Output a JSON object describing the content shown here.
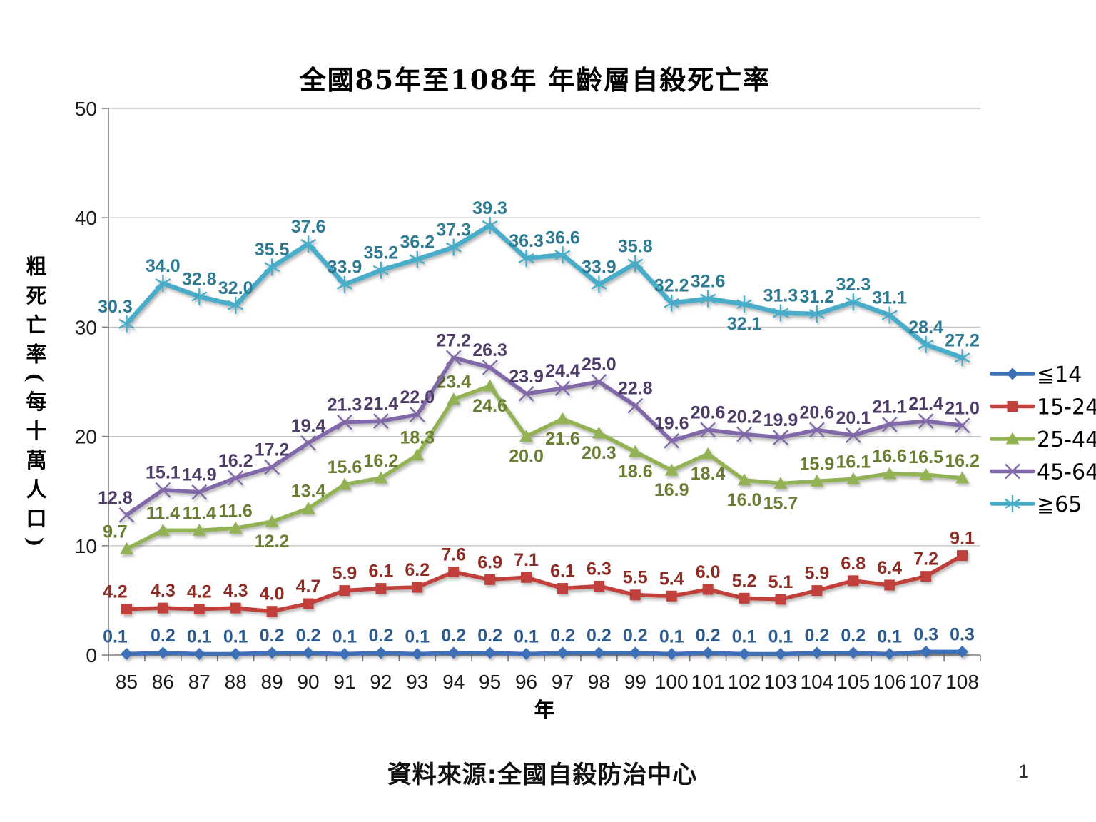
{
  "page": {
    "source_note": "資料來源:全國自殺防治中心",
    "page_number": "1"
  },
  "chart_data": {
    "type": "line",
    "title": "全國85年至108年 年齡層自殺死亡率",
    "xlabel": "年",
    "ylabel": "粗死亡率(每十萬人口)",
    "ylim": [
      0,
      50
    ],
    "ytick_step": 10,
    "grid": true,
    "legend_position": "right",
    "categories": [
      "85",
      "86",
      "87",
      "88",
      "89",
      "90",
      "91",
      "92",
      "93",
      "94",
      "95",
      "96",
      "97",
      "98",
      "99",
      "100",
      "101",
      "102",
      "103",
      "104",
      "105",
      "106",
      "107",
      "108"
    ],
    "series": [
      {
        "name": "≦14",
        "key": "le-14",
        "marker": "diamond",
        "color": "#3D6FB6",
        "label_color": "#2E5B8F",
        "values": [
          0.1,
          0.2,
          0.1,
          0.1,
          0.2,
          0.2,
          0.1,
          0.2,
          0.1,
          0.2,
          0.2,
          0.1,
          0.2,
          0.2,
          0.2,
          0.1,
          0.2,
          0.1,
          0.1,
          0.2,
          0.2,
          0.1,
          0.3,
          0.3
        ],
        "labels_below": []
      },
      {
        "name": "15-24",
        "key": "15-24",
        "marker": "square",
        "color": "#C1403A",
        "label_color": "#8E2D25",
        "values": [
          4.2,
          4.3,
          4.2,
          4.3,
          4.0,
          4.7,
          5.9,
          6.1,
          6.2,
          7.6,
          6.9,
          7.1,
          6.1,
          6.3,
          5.5,
          5.4,
          6.0,
          5.2,
          5.1,
          5.9,
          6.8,
          6.4,
          7.2,
          9.1
        ],
        "labels_below": []
      },
      {
        "name": "25-44",
        "key": "25-44",
        "marker": "triangle",
        "color": "#92B254",
        "label_color": "#697D33",
        "values": [
          9.7,
          11.4,
          11.4,
          11.6,
          12.2,
          13.4,
          15.6,
          16.2,
          18.3,
          23.4,
          24.6,
          20.0,
          21.6,
          20.3,
          18.6,
          16.9,
          18.4,
          16.0,
          15.7,
          15.9,
          16.1,
          16.6,
          16.5,
          16.2
        ],
        "labels_below": [
          4,
          10,
          11,
          12,
          13,
          14,
          15,
          16,
          17,
          18
        ]
      },
      {
        "name": "45-64",
        "key": "45-64",
        "marker": "x",
        "color": "#8168A8",
        "label_color": "#4E3D68",
        "values": [
          12.8,
          15.1,
          14.9,
          16.2,
          17.2,
          19.4,
          21.3,
          21.4,
          22.0,
          27.2,
          26.3,
          23.9,
          24.4,
          25.0,
          22.8,
          19.6,
          20.6,
          20.2,
          19.9,
          20.6,
          20.1,
          21.1,
          21.4,
          21.0
        ],
        "labels_below": []
      },
      {
        "name": "≧65",
        "key": "ge-65",
        "marker": "asterisk",
        "color": "#48ADC9",
        "label_color": "#2E7A92",
        "values": [
          30.3,
          34.0,
          32.8,
          32.0,
          35.5,
          37.6,
          33.9,
          35.2,
          36.2,
          37.3,
          39.3,
          36.3,
          36.6,
          33.9,
          35.8,
          32.2,
          32.6,
          32.1,
          31.3,
          31.2,
          32.3,
          31.1,
          28.4,
          27.2
        ],
        "labels_below": [
          17
        ]
      }
    ]
  }
}
